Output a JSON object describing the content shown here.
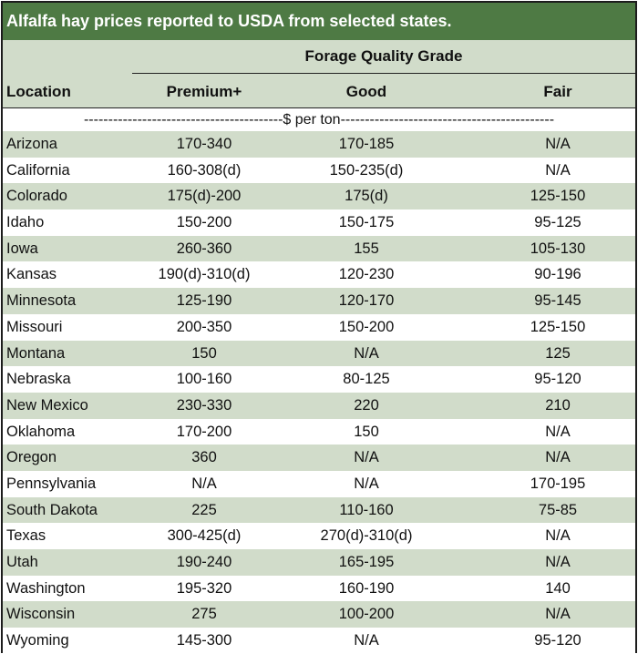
{
  "title": "Alfalfa hay prices reported to USDA from selected states.",
  "header": {
    "group_label": "Forage Quality Grade",
    "columns": [
      "Location",
      "Premium+",
      "Good",
      "Fair"
    ]
  },
  "unit_row": "-----------------------------------------$ per ton--------------------------------------------",
  "rows": [
    {
      "location": "Arizona",
      "premium": "170-340",
      "good": "170-185",
      "fair": "N/A"
    },
    {
      "location": "California",
      "premium": "160-308(d)",
      "good": "150-235(d)",
      "fair": "N/A"
    },
    {
      "location": "Colorado",
      "premium": "175(d)-200",
      "good": "175(d)",
      "fair": "125-150"
    },
    {
      "location": "Idaho",
      "premium": "150-200",
      "good": "150-175",
      "fair": "95-125"
    },
    {
      "location": "Iowa",
      "premium": "260-360",
      "good": "155",
      "fair": "105-130"
    },
    {
      "location": "Kansas",
      "premium": "190(d)-310(d)",
      "good": "120-230",
      "fair": "90-196"
    },
    {
      "location": "Minnesota",
      "premium": "125-190",
      "good": "120-170",
      "fair": "95-145"
    },
    {
      "location": "Missouri",
      "premium": "200-350",
      "good": "150-200",
      "fair": "125-150"
    },
    {
      "location": "Montana",
      "premium": "150",
      "good": "N/A",
      "fair": "125"
    },
    {
      "location": "Nebraska",
      "premium": "100-160",
      "good": "80-125",
      "fair": "95-120"
    },
    {
      "location": "New Mexico",
      "premium": "230-330",
      "good": "220",
      "fair": "210"
    },
    {
      "location": "Oklahoma",
      "premium": "170-200",
      "good": "150",
      "fair": "N/A"
    },
    {
      "location": "Oregon",
      "premium": "360",
      "good": "N/A",
      "fair": "N/A"
    },
    {
      "location": "Pennsylvania",
      "premium": "N/A",
      "good": "N/A",
      "fair": "170-195"
    },
    {
      "location": "South Dakota",
      "premium": "225",
      "good": "110-160",
      "fair": "75-85"
    },
    {
      "location": "Texas",
      "premium": "300-425(d)",
      "good": "270(d)-310(d)",
      "fair": "N/A"
    },
    {
      "location": "Utah",
      "premium": "190-240",
      "good": "165-195",
      "fair": "N/A"
    },
    {
      "location": "Washington",
      "premium": "195-320",
      "good": "160-190",
      "fair": "140"
    },
    {
      "location": "Wisconsin",
      "premium": "275",
      "good": "100-200",
      "fair": "N/A"
    },
    {
      "location": "Wyoming",
      "premium": "145-300",
      "good": "N/A",
      "fair": "95-120"
    }
  ]
}
